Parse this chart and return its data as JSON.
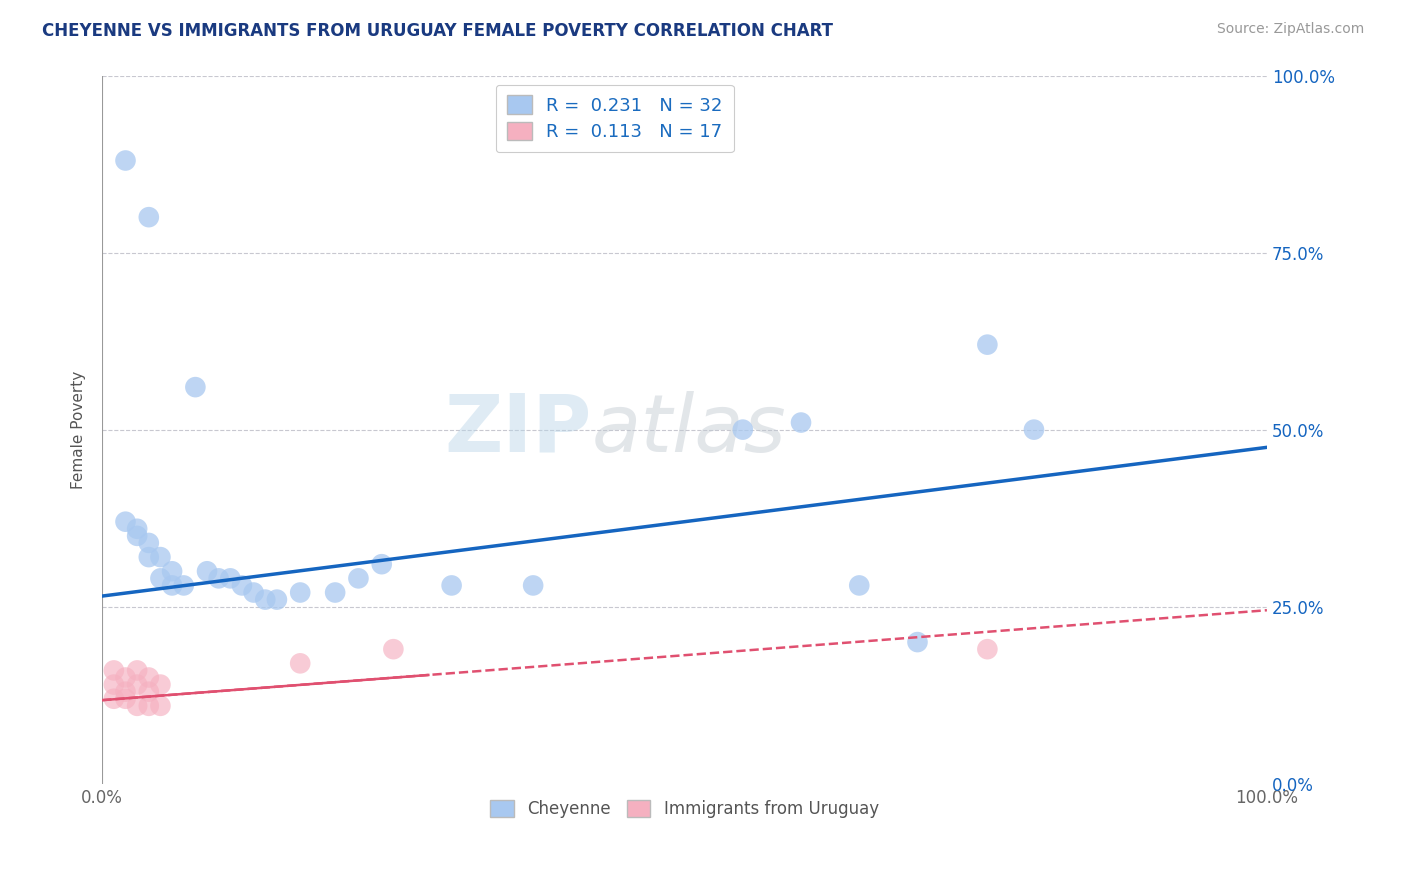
{
  "title": "CHEYENNE VS IMMIGRANTS FROM URUGUAY FEMALE POVERTY CORRELATION CHART",
  "source": "Source: ZipAtlas.com",
  "ylabel": "Female Poverty",
  "xlim": [
    0,
    1
  ],
  "ylim": [
    0,
    1
  ],
  "cheyenne_R": 0.231,
  "cheyenne_N": 32,
  "uruguay_R": 0.113,
  "uruguay_N": 17,
  "cheyenne_color": "#a8c8f0",
  "cheyenne_line_color": "#1565c0",
  "uruguay_color": "#f5b0c0",
  "uruguay_line_color": "#e05070",
  "background_color": "#ffffff",
  "grid_color": "#c8c8d0",
  "title_color": "#1a3a80",
  "cheyenne_x": [
    0.02,
    0.04,
    0.02,
    0.03,
    0.03,
    0.04,
    0.04,
    0.05,
    0.05,
    0.06,
    0.06,
    0.07,
    0.08,
    0.09,
    0.1,
    0.11,
    0.12,
    0.13,
    0.14,
    0.15,
    0.17,
    0.2,
    0.22,
    0.24,
    0.3,
    0.37,
    0.55,
    0.6,
    0.65,
    0.7,
    0.76,
    0.8
  ],
  "cheyenne_y": [
    0.88,
    0.8,
    0.37,
    0.35,
    0.36,
    0.34,
    0.32,
    0.32,
    0.29,
    0.3,
    0.28,
    0.28,
    0.56,
    0.3,
    0.29,
    0.29,
    0.28,
    0.27,
    0.26,
    0.26,
    0.27,
    0.27,
    0.29,
    0.31,
    0.28,
    0.28,
    0.5,
    0.51,
    0.28,
    0.2,
    0.62,
    0.5
  ],
  "uruguay_x": [
    0.01,
    0.01,
    0.01,
    0.02,
    0.02,
    0.02,
    0.03,
    0.03,
    0.03,
    0.04,
    0.04,
    0.04,
    0.05,
    0.05,
    0.17,
    0.25,
    0.76
  ],
  "uruguay_y": [
    0.16,
    0.14,
    0.12,
    0.15,
    0.13,
    0.12,
    0.16,
    0.14,
    0.11,
    0.15,
    0.13,
    0.11,
    0.14,
    0.11,
    0.17,
    0.19,
    0.19
  ],
  "cheyenne_trend_x0": 0.0,
  "cheyenne_trend_y0": 0.265,
  "cheyenne_trend_x1": 1.0,
  "cheyenne_trend_y1": 0.475,
  "uruguay_trend_x0": 0.0,
  "uruguay_trend_y0": 0.118,
  "uruguay_trend_x1": 1.0,
  "uruguay_trend_y1": 0.245
}
